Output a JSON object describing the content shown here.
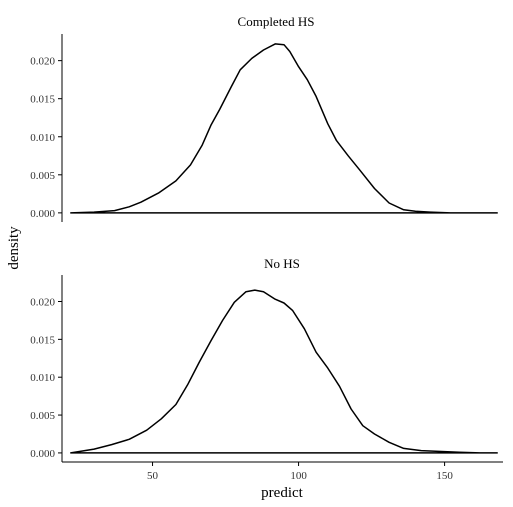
{
  "chart_data": {
    "type": "area",
    "xlabel": "predict",
    "ylabel": "density",
    "xlim": [
      19,
      170
    ],
    "ylim": [
      -0.0012,
      0.0235
    ],
    "x_ticks": [
      50,
      100,
      150
    ],
    "y_ticks": [
      0.0,
      0.005,
      0.01,
      0.015,
      0.02
    ],
    "y_tick_labels": [
      "0.000",
      "0.005",
      "0.010",
      "0.015",
      "0.020"
    ],
    "grid": false,
    "panels": [
      {
        "title": "Completed HS",
        "x": [
          22,
          30,
          37,
          42,
          46,
          52,
          58,
          63,
          67,
          70,
          73,
          77,
          80,
          84,
          88,
          92,
          95,
          97,
          100,
          103,
          106,
          110,
          113,
          117,
          121,
          126,
          131,
          136,
          140,
          145,
          152,
          160,
          168
        ],
        "y": [
          0.0,
          0.0001,
          0.0003,
          0.0008,
          0.0014,
          0.0026,
          0.0042,
          0.0063,
          0.0089,
          0.0115,
          0.0136,
          0.0166,
          0.0188,
          0.0203,
          0.0214,
          0.0222,
          0.0221,
          0.0212,
          0.0192,
          0.0175,
          0.0153,
          0.0117,
          0.0095,
          0.0075,
          0.0056,
          0.0032,
          0.0013,
          0.0004,
          0.0002,
          0.0001,
          0.0,
          0.0,
          0.0
        ]
      },
      {
        "title": "No HS",
        "x": [
          22,
          30,
          36,
          42,
          48,
          53,
          58,
          62,
          66,
          70,
          74,
          78,
          82,
          85,
          88,
          92,
          95,
          98,
          102,
          106,
          110,
          114,
          118,
          122,
          126,
          131,
          136,
          142,
          148,
          155,
          162,
          168
        ],
        "y": [
          0.0,
          0.0005,
          0.0011,
          0.0018,
          0.003,
          0.0045,
          0.0064,
          0.009,
          0.012,
          0.0148,
          0.0175,
          0.0199,
          0.0213,
          0.0215,
          0.0213,
          0.0203,
          0.0198,
          0.0188,
          0.0164,
          0.0133,
          0.0112,
          0.0088,
          0.0058,
          0.0036,
          0.0025,
          0.0014,
          0.0006,
          0.0003,
          0.0002,
          0.0001,
          0.0,
          0.0
        ]
      }
    ]
  }
}
